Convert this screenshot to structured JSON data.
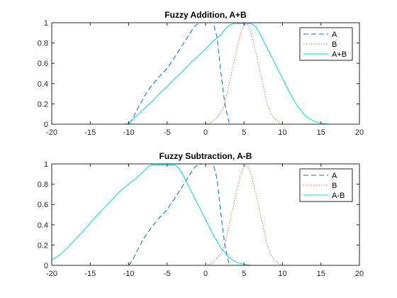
{
  "chart_data": [
    {
      "type": "line",
      "title": "Fuzzy Addition, A+B",
      "xlim": [
        -20,
        20
      ],
      "ylim": [
        0,
        1
      ],
      "xticks": [
        "-20",
        "-15",
        "-10",
        "-5",
        "0",
        "5",
        "10",
        "15",
        "20"
      ],
      "yticks": [
        "0",
        "0.2",
        "0.4",
        "0.6",
        "0.8",
        "1"
      ],
      "legend_position": "top-right",
      "grid": false,
      "series": [
        {
          "name": "A",
          "color": "#0072BD",
          "style": "dashed",
          "points": [
            [
              -17,
              0
            ],
            [
              -10,
              0
            ],
            [
              -9.5,
              0.05
            ],
            [
              -9,
              0.13
            ],
            [
              -8,
              0.27
            ],
            [
              -7,
              0.38
            ],
            [
              -6,
              0.47
            ],
            [
              -5,
              0.55
            ],
            [
              -4,
              0.66
            ],
            [
              -3,
              0.78
            ],
            [
              -2,
              0.9
            ],
            [
              -1.5,
              0.96
            ],
            [
              -1,
              0.99
            ],
            [
              -0.5,
              1
            ],
            [
              1,
              1
            ],
            [
              1.5,
              0.85
            ],
            [
              2,
              0.5
            ],
            [
              2.5,
              0.2
            ],
            [
              3,
              0.03
            ],
            [
              3.2,
              0
            ],
            [
              17,
              0
            ]
          ]
        },
        {
          "name": "B",
          "color": "#D95319",
          "style": "dotted",
          "points": [
            [
              -17,
              0
            ],
            [
              0,
              0
            ],
            [
              0.5,
              0.01
            ],
            [
              1,
              0.03
            ],
            [
              1.5,
              0.07
            ],
            [
              2,
              0.12
            ],
            [
              2.5,
              0.2
            ],
            [
              3,
              0.38
            ],
            [
              3.5,
              0.55
            ],
            [
              4,
              0.72
            ],
            [
              4.5,
              0.88
            ],
            [
              5,
              0.98
            ],
            [
              5.5,
              0.98
            ],
            [
              6,
              0.88
            ],
            [
              6.5,
              0.72
            ],
            [
              7,
              0.55
            ],
            [
              7.5,
              0.38
            ],
            [
              8,
              0.2
            ],
            [
              8.5,
              0.1
            ],
            [
              9,
              0.05
            ],
            [
              9.5,
              0.02
            ],
            [
              10,
              0
            ],
            [
              17,
              0
            ]
          ]
        },
        {
          "name": "A+B",
          "color": "#00D8D8",
          "style": "solid",
          "points": [
            [
              -17,
              0
            ],
            [
              -10.5,
              0
            ],
            [
              -10,
              0.01
            ],
            [
              -9.5,
              0.04
            ],
            [
              -9,
              0.08
            ],
            [
              -8,
              0.15
            ],
            [
              -7,
              0.22
            ],
            [
              -6,
              0.3
            ],
            [
              -5,
              0.37
            ],
            [
              -4,
              0.45
            ],
            [
              -3,
              0.52
            ],
            [
              -2,
              0.6
            ],
            [
              -1,
              0.67
            ],
            [
              0,
              0.74
            ],
            [
              1,
              0.82
            ],
            [
              2,
              0.88
            ],
            [
              2.5,
              0.93
            ],
            [
              3,
              0.97
            ],
            [
              3.5,
              0.99
            ],
            [
              6,
              0.99
            ],
            [
              6.5,
              0.96
            ],
            [
              7,
              0.9
            ],
            [
              8,
              0.75
            ],
            [
              9,
              0.6
            ],
            [
              10,
              0.45
            ],
            [
              11,
              0.3
            ],
            [
              12,
              0.17
            ],
            [
              13,
              0.08
            ],
            [
              14,
              0.03
            ],
            [
              15,
              0.01
            ],
            [
              16,
              0
            ],
            [
              17,
              0
            ]
          ]
        }
      ]
    },
    {
      "type": "line",
      "title": "Fuzzy Subtraction, A-B",
      "xlim": [
        -20,
        20
      ],
      "ylim": [
        0,
        1
      ],
      "xticks": [
        "-20",
        "-15",
        "-10",
        "-5",
        "0",
        "5",
        "10",
        "15",
        "20"
      ],
      "yticks": [
        "0",
        "0.2",
        "0.4",
        "0.6",
        "0.8",
        "1"
      ],
      "legend_position": "top-right",
      "grid": false,
      "series": [
        {
          "name": "A",
          "color": "#0072BD",
          "style": "dashed",
          "points": [
            [
              -10,
              0
            ],
            [
              -9.5,
              0.05
            ],
            [
              -9,
              0.13
            ],
            [
              -8,
              0.27
            ],
            [
              -7,
              0.38
            ],
            [
              -6,
              0.47
            ],
            [
              -5,
              0.55
            ],
            [
              -4,
              0.66
            ],
            [
              -3,
              0.78
            ],
            [
              -2,
              0.9
            ],
            [
              -1.5,
              0.96
            ],
            [
              -1,
              0.99
            ],
            [
              -0.5,
              1
            ],
            [
              1,
              1
            ],
            [
              1.5,
              0.85
            ],
            [
              2,
              0.5
            ],
            [
              2.5,
              0.2
            ],
            [
              3,
              0.03
            ],
            [
              3.2,
              0
            ]
          ]
        },
        {
          "name": "B",
          "color": "#D95319",
          "style": "dotted",
          "points": [
            [
              0,
              0
            ],
            [
              0.5,
              0.01
            ],
            [
              1,
              0.03
            ],
            [
              1.5,
              0.07
            ],
            [
              2,
              0.12
            ],
            [
              2.5,
              0.2
            ],
            [
              3,
              0.38
            ],
            [
              3.5,
              0.55
            ],
            [
              4,
              0.72
            ],
            [
              4.5,
              0.88
            ],
            [
              5,
              0.98
            ],
            [
              5.5,
              0.98
            ],
            [
              6,
              0.88
            ],
            [
              6.5,
              0.72
            ],
            [
              7,
              0.55
            ],
            [
              7.5,
              0.38
            ],
            [
              8,
              0.2
            ],
            [
              8.5,
              0.1
            ],
            [
              9,
              0.05
            ],
            [
              9.5,
              0.02
            ],
            [
              10,
              0
            ]
          ]
        },
        {
          "name": "A-B",
          "color": "#00D8D8",
          "style": "solid",
          "points": [
            [
              -20,
              0.05
            ],
            [
              -19,
              0.1
            ],
            [
              -18,
              0.17
            ],
            [
              -17,
              0.25
            ],
            [
              -16,
              0.33
            ],
            [
              -15,
              0.42
            ],
            [
              -14,
              0.5
            ],
            [
              -13,
              0.58
            ],
            [
              -12,
              0.66
            ],
            [
              -11,
              0.74
            ],
            [
              -10,
              0.8
            ],
            [
              -9,
              0.86
            ],
            [
              -8,
              0.93
            ],
            [
              -7.5,
              0.97
            ],
            [
              -7,
              0.99
            ],
            [
              -4,
              0.99
            ],
            [
              -3.5,
              0.96
            ],
            [
              -3,
              0.9
            ],
            [
              -2,
              0.75
            ],
            [
              -1,
              0.6
            ],
            [
              0,
              0.45
            ],
            [
              1,
              0.3
            ],
            [
              2,
              0.17
            ],
            [
              3,
              0.08
            ],
            [
              4,
              0.03
            ],
            [
              5,
              0.01
            ],
            [
              6,
              0
            ],
            [
              20,
              0
            ]
          ]
        }
      ]
    }
  ]
}
